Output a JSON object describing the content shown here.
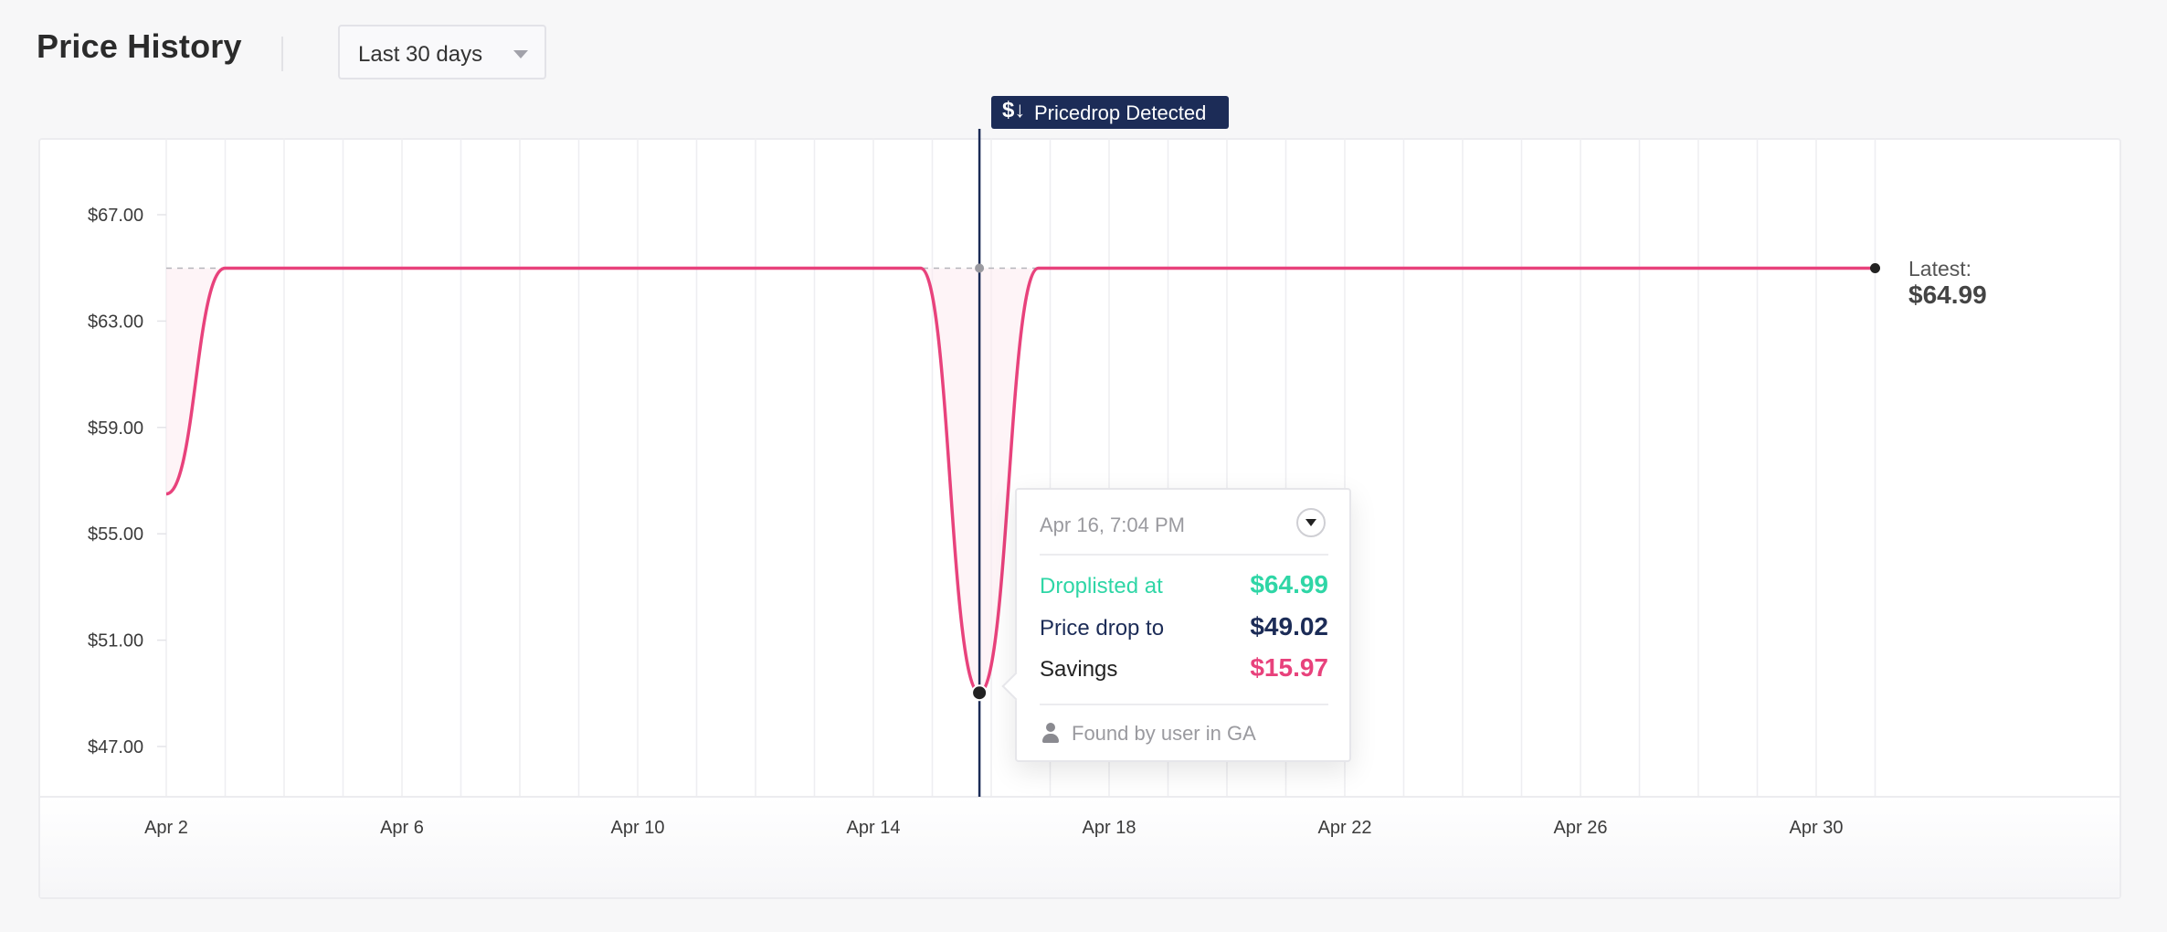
{
  "header": {
    "title": "Price History",
    "range_selected": "Last 30 days"
  },
  "banner": {
    "icon": "dollar-down-icon",
    "text": "Pricedrop Detected"
  },
  "colors": {
    "line": "#e8427c",
    "marker": "#1c2c57",
    "droplisted": "#2fd6a6",
    "price_drop": "#1c2c57",
    "savings": "#e8427c"
  },
  "tooltip": {
    "date": "Apr 16, 7:04 PM",
    "rows": [
      {
        "label": "Droplisted at",
        "value": "$64.99"
      },
      {
        "label": "Price drop to",
        "value": "$49.02"
      },
      {
        "label": "Savings",
        "value": "$15.97"
      }
    ],
    "found_by": "Found by user in GA",
    "found_icon": "user-icon"
  },
  "latest": {
    "label": "Latest:",
    "value": "$64.99"
  },
  "chart_data": {
    "type": "line",
    "title": "Price History",
    "xlabel": "",
    "ylabel": "",
    "x_axis": "day of month (April)",
    "xlim": [
      2,
      31
    ],
    "ylim": [
      45,
      69
    ],
    "yticks": [
      47,
      51,
      55,
      59,
      63,
      67
    ],
    "ytick_labels": [
      "$47.00",
      "$51.00",
      "$55.00",
      "$59.00",
      "$63.00",
      "$67.00"
    ],
    "xticks": [
      2,
      6,
      10,
      14,
      18,
      22,
      26,
      30
    ],
    "xtick_labels": [
      "Apr 2",
      "Apr 6",
      "Apr 10",
      "Apr 14",
      "Apr 18",
      "Apr 22",
      "Apr 26",
      "Apr 30"
    ],
    "grid": "vertical",
    "reference_price": 64.99,
    "drop_day": 15.8,
    "series": [
      {
        "points": [
          [
            2,
            56.5
          ],
          [
            3,
            64.99
          ],
          [
            5,
            64.99
          ],
          [
            10,
            64.99
          ],
          [
            14,
            64.99
          ],
          [
            14.8,
            64.99
          ],
          [
            15.8,
            49.02
          ],
          [
            16.8,
            64.99
          ],
          [
            18,
            64.99
          ],
          [
            22,
            64.99
          ],
          [
            26,
            64.99
          ],
          [
            31,
            64.99
          ]
        ]
      }
    ]
  }
}
